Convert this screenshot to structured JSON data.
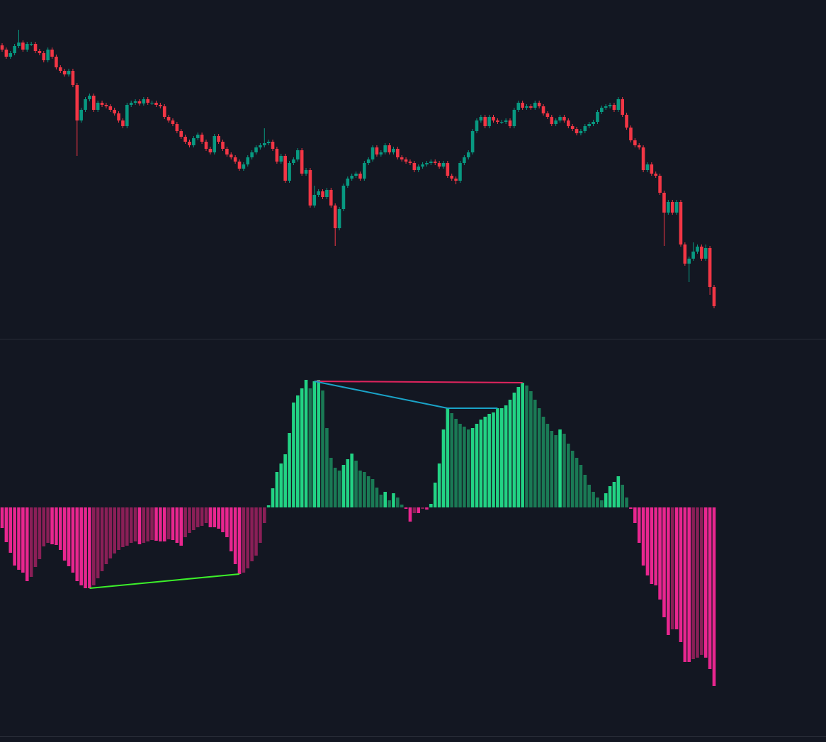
{
  "chart_data": [
    {
      "type": "candlestick",
      "up_color": "#089981",
      "down_color": "#f23645",
      "ylim": [
        0,
        478
      ],
      "open": [
        414,
        408,
        398,
        403,
        413,
        418,
        408,
        416,
        416,
        406,
        403,
        393,
        408,
        398,
        383,
        378,
        373,
        378,
        358,
        308,
        323,
        338,
        343,
        323,
        333,
        330,
        328,
        323,
        318,
        308,
        300,
        330,
        333,
        335,
        332,
        338,
        333,
        333,
        330,
        328,
        313,
        308,
        303,
        293,
        285,
        278,
        273,
        283,
        288,
        278,
        268,
        263,
        286,
        278,
        268,
        260,
        256,
        250,
        240,
        246,
        256,
        263,
        270,
        273,
        276,
        278,
        268,
        250,
        258,
        223,
        248,
        253,
        266,
        233,
        238,
        188,
        203,
        208,
        200,
        210,
        188,
        156,
        183,
        216,
        226,
        230,
        233,
        226,
        248,
        253,
        270,
        260,
        263,
        273,
        263,
        268,
        256,
        253,
        250,
        248,
        238,
        243,
        246,
        248,
        250,
        248,
        243,
        248,
        230,
        226,
        223,
        248,
        256,
        263,
        293,
        308,
        313,
        300,
        313,
        308,
        306,
        306,
        308,
        300,
        323,
        333,
        326,
        328,
        326,
        333,
        328,
        318,
        313,
        303,
        308,
        313,
        308,
        300,
        296,
        290,
        293,
        300,
        303,
        306,
        320,
        326,
        328,
        330,
        323,
        338,
        316,
        298,
        280,
        273,
        270,
        238,
        246,
        233,
        230,
        206,
        178,
        193,
        178,
        193,
        133,
        106,
        113,
        123,
        130,
        113,
        128,
        73
      ],
      "high": [
        417,
        411,
        406,
        416,
        436,
        421,
        419,
        419,
        419,
        409,
        406,
        411,
        411,
        401,
        386,
        381,
        381,
        381,
        361,
        326,
        341,
        346,
        346,
        336,
        336,
        333,
        331,
        326,
        321,
        311,
        333,
        336,
        338,
        338,
        341,
        341,
        336,
        336,
        333,
        331,
        316,
        311,
        306,
        296,
        288,
        281,
        286,
        291,
        291,
        281,
        271,
        289,
        289,
        281,
        271,
        263,
        259,
        253,
        249,
        259,
        266,
        273,
        276,
        297,
        281,
        281,
        271,
        261,
        261,
        251,
        256,
        269,
        269,
        241,
        241,
        216,
        211,
        211,
        213,
        213,
        191,
        186,
        219,
        229,
        233,
        236,
        236,
        251,
        256,
        273,
        273,
        266,
        276,
        276,
        271,
        271,
        259,
        256,
        253,
        251,
        246,
        249,
        251,
        253,
        253,
        251,
        251,
        251,
        233,
        229,
        251,
        259,
        266,
        296,
        311,
        316,
        316,
        316,
        316,
        311,
        309,
        311,
        311,
        326,
        336,
        336,
        331,
        331,
        336,
        336,
        331,
        321,
        316,
        311,
        316,
        316,
        311,
        303,
        299,
        296,
        303,
        306,
        309,
        323,
        329,
        331,
        333,
        333,
        341,
        341,
        319,
        301,
        283,
        276,
        273,
        249,
        249,
        236,
        233,
        209,
        196,
        196,
        196,
        196,
        136,
        116,
        136,
        133,
        133,
        133,
        131,
        76
      ],
      "low": [
        405,
        395,
        395,
        400,
        410,
        405,
        405,
        413,
        403,
        400,
        390,
        390,
        395,
        380,
        375,
        370,
        370,
        355,
        258,
        305,
        320,
        335,
        320,
        320,
        327,
        325,
        320,
        315,
        305,
        297,
        297,
        327,
        330,
        329,
        329,
        330,
        330,
        327,
        325,
        310,
        305,
        300,
        290,
        282,
        275,
        270,
        270,
        280,
        275,
        265,
        260,
        260,
        275,
        265,
        257,
        253,
        247,
        237,
        237,
        243,
        253,
        260,
        267,
        270,
        273,
        265,
        247,
        247,
        220,
        220,
        245,
        250,
        230,
        230,
        185,
        185,
        200,
        197,
        197,
        185,
        131,
        153,
        180,
        213,
        223,
        227,
        223,
        223,
        245,
        250,
        257,
        257,
        260,
        260,
        260,
        253,
        250,
        247,
        245,
        235,
        235,
        240,
        243,
        245,
        245,
        240,
        240,
        227,
        223,
        218,
        220,
        245,
        253,
        260,
        290,
        305,
        297,
        297,
        305,
        303,
        303,
        303,
        297,
        297,
        320,
        323,
        323,
        323,
        323,
        325,
        315,
        310,
        300,
        300,
        305,
        305,
        297,
        293,
        287,
        287,
        290,
        297,
        300,
        303,
        317,
        323,
        325,
        320,
        320,
        313,
        295,
        277,
        270,
        267,
        235,
        235,
        230,
        227,
        203,
        131,
        175,
        175,
        175,
        130,
        103,
        80,
        110,
        120,
        110,
        110,
        62,
        43
      ],
      "close": [
        408,
        398,
        403,
        413,
        418,
        408,
        416,
        416,
        406,
        403,
        393,
        408,
        398,
        383,
        378,
        373,
        378,
        358,
        308,
        323,
        338,
        343,
        323,
        333,
        330,
        328,
        323,
        318,
        308,
        300,
        330,
        333,
        335,
        332,
        338,
        333,
        333,
        330,
        328,
        313,
        308,
        303,
        293,
        285,
        278,
        273,
        283,
        288,
        278,
        268,
        263,
        286,
        278,
        268,
        260,
        256,
        250,
        240,
        246,
        256,
        263,
        270,
        273,
        276,
        278,
        268,
        250,
        258,
        223,
        248,
        253,
        266,
        233,
        238,
        188,
        203,
        208,
        200,
        210,
        188,
        156,
        183,
        216,
        226,
        230,
        233,
        226,
        248,
        253,
        270,
        260,
        263,
        273,
        263,
        268,
        256,
        253,
        250,
        248,
        238,
        243,
        246,
        248,
        250,
        248,
        243,
        248,
        230,
        226,
        223,
        248,
        256,
        263,
        293,
        308,
        313,
        300,
        313,
        308,
        306,
        306,
        308,
        300,
        323,
        333,
        326,
        328,
        326,
        333,
        328,
        318,
        313,
        303,
        308,
        313,
        308,
        300,
        296,
        290,
        293,
        300,
        303,
        306,
        320,
        326,
        328,
        330,
        323,
        338,
        316,
        298,
        280,
        273,
        270,
        238,
        246,
        233,
        230,
        206,
        178,
        193,
        178,
        193,
        133,
        106,
        113,
        123,
        130,
        113,
        128,
        73,
        46
      ]
    },
    {
      "type": "histogram",
      "ylim": [
        -324,
        238
      ],
      "colors": {
        "rising_positive": "#22d384",
        "falling_positive": "#1a7a55",
        "falling_negative": "#e8268f",
        "rising_negative": "#8a1f57"
      },
      "values": [
        -29,
        -49,
        -64,
        -82,
        -88,
        -92,
        -104,
        -98,
        -84,
        -73,
        -55,
        -50,
        -52,
        -53,
        -60,
        -75,
        -83,
        -92,
        -104,
        -110,
        -114,
        -114,
        -110,
        -100,
        -90,
        -80,
        -72,
        -65,
        -60,
        -56,
        -54,
        -50,
        -48,
        -52,
        -50,
        -48,
        -46,
        -47,
        -48,
        -48,
        -45,
        -46,
        -50,
        -54,
        -42,
        -36,
        -32,
        -28,
        -26,
        -22,
        -28,
        -28,
        -30,
        -35,
        -42,
        -62,
        -80,
        -94,
        -92,
        -86,
        -76,
        -68,
        -50,
        -22,
        3,
        27,
        50,
        62,
        75,
        105,
        148,
        158,
        168,
        180,
        168,
        178,
        180,
        165,
        112,
        70,
        56,
        52,
        60,
        68,
        76,
        66,
        52,
        50,
        44,
        40,
        28,
        18,
        22,
        10,
        20,
        14,
        4,
        -2,
        -20,
        -8,
        -8,
        -2,
        -3,
        5,
        35,
        62,
        110,
        140,
        133,
        125,
        118,
        114,
        110,
        112,
        118,
        124,
        128,
        132,
        134,
        140,
        140,
        144,
        152,
        162,
        170,
        176,
        172,
        164,
        152,
        140,
        128,
        118,
        108,
        102,
        110,
        104,
        90,
        80,
        70,
        60,
        46,
        32,
        22,
        14,
        10,
        20,
        30,
        36,
        44,
        32,
        14,
        -2,
        -22,
        -50,
        -82,
        -96,
        -108,
        -110,
        -130,
        -155,
        -180,
        -172,
        -172,
        -190,
        -218,
        -218,
        -214,
        -212,
        -208,
        -212,
        -228,
        -252
      ],
      "divergences": [
        {
          "color": "#3cf02a",
          "from": 21,
          "to": 57
        },
        {
          "color": "#e0245e",
          "from": 75,
          "to": 125
        },
        {
          "color": "#1aa3c8",
          "from": 75,
          "to": 107
        },
        {
          "color": "#1aa3c8",
          "from": 107,
          "to": 119
        }
      ]
    }
  ]
}
